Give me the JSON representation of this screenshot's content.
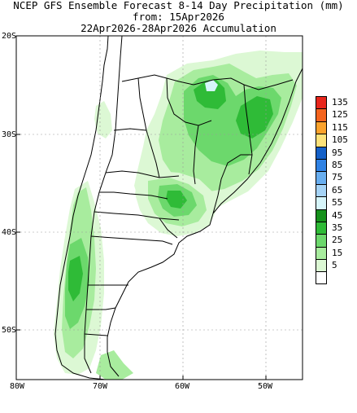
{
  "title": {
    "line1": "NCEP GFS Ensemble Forecast 8-14 Day Precipitation (mm)",
    "line2": "from: 15Apr2026",
    "line3": "22Apr2026-28Apr2026 Accumulation"
  },
  "axes": {
    "lat_ticks": [
      "20S",
      "30S",
      "40S",
      "50S"
    ],
    "lon_ticks": [
      "80W",
      "70W",
      "60W",
      "50W"
    ]
  },
  "legend": [
    {
      "label": "135",
      "color": "#e8261c"
    },
    {
      "label": "125",
      "color": "#f4641e"
    },
    {
      "label": "115",
      "color": "#fba22c"
    },
    {
      "label": "105",
      "color": "#fde27a"
    },
    {
      "label": "95",
      "color": "#1460c8"
    },
    {
      "label": "85",
      "color": "#2f82e4"
    },
    {
      "label": "75",
      "color": "#68aef0"
    },
    {
      "label": "65",
      "color": "#a5d3f6"
    },
    {
      "label": "55",
      "color": "#d6f5fa"
    },
    {
      "label": "45",
      "color": "#16911c"
    },
    {
      "label": "35",
      "color": "#2fbb37"
    },
    {
      "label": "25",
      "color": "#6cd86c"
    },
    {
      "label": "15",
      "color": "#a8ec9e"
    },
    {
      "label": "5",
      "color": "#dcf8d4"
    },
    {
      "label": "",
      "color": "#ffffff"
    }
  ]
}
